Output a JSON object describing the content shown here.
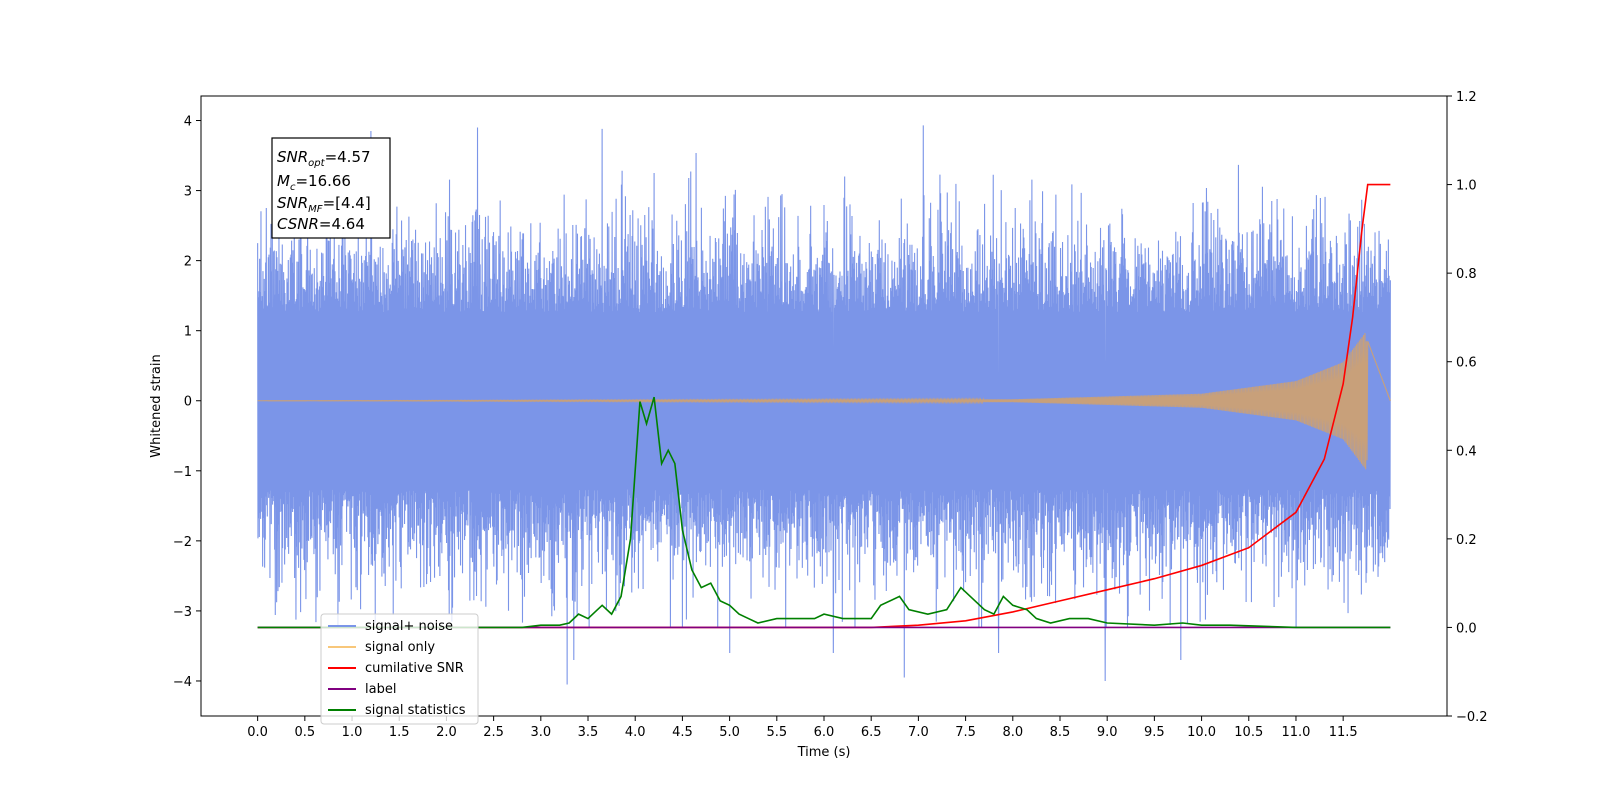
{
  "chart_data": {
    "type": "line",
    "xlabel": "Time (s)",
    "ylabel": "Whitened strain",
    "xlim": [
      -0.6,
      12.6
    ],
    "ylim": [
      -4.5,
      4.35
    ],
    "y2lim": [
      -0.2,
      1.2
    ],
    "x_ticks": [
      "0.0",
      "0.5",
      "1.0",
      "1.5",
      "2.0",
      "2.5",
      "3.0",
      "3.5",
      "4.0",
      "4.5",
      "5.0",
      "5.5",
      "6.0",
      "6.5",
      "7.0",
      "7.5",
      "8.0",
      "8.5",
      "9.0",
      "9.5",
      "10.0",
      "10.5",
      "11.0",
      "11.5"
    ],
    "y_ticks": [
      "4",
      "3",
      "2",
      "1",
      "0",
      "−1",
      "−2",
      "−3",
      "−4"
    ],
    "y2_ticks": [
      "1.2",
      "1.0",
      "0.8",
      "0.6",
      "0.4",
      "0.2",
      "0.0",
      "−0.2"
    ],
    "annotation": {
      "lines": [
        {
          "sym": "SNR",
          "sub": "opt",
          "value": "=4.57"
        },
        {
          "sym": "M",
          "sub": "c",
          "value": "=16.66"
        },
        {
          "sym": "SNR",
          "sub": "MF",
          "value": "=[4.4]"
        },
        {
          "sym": "CSNR",
          "sub": "",
          "value": "=4.64"
        }
      ]
    },
    "legend": {
      "position": "lower-left",
      "entries": [
        {
          "label": "signal+ noise",
          "color": "#7b95e8"
        },
        {
          "label": "signal only",
          "color": "#f8c77a"
        },
        {
          "label": "cumilative SNR",
          "color": "#ff0000"
        },
        {
          "label": "label",
          "color": "#800080"
        },
        {
          "label": "signal statistics",
          "color": "#008000"
        }
      ]
    },
    "series": [
      {
        "name": "signal+ noise",
        "axis": "left",
        "color": "#7b95e8",
        "x_start": 0.0,
        "x_end": 12.0,
        "typical_amplitude": 2.3,
        "max": 3.93,
        "min": -4.05,
        "peaks": [
          {
            "x": 1.2,
            "y": 3.85
          },
          {
            "x": 2.33,
            "y": 3.9
          },
          {
            "x": 3.65,
            "y": 3.88
          },
          {
            "x": 7.05,
            "y": 3.93
          },
          {
            "x": 3.28,
            "y": -4.05
          },
          {
            "x": 6.85,
            "y": -3.95
          },
          {
            "x": 8.98,
            "y": -4.0
          },
          {
            "x": 3.35,
            "y": -3.7
          },
          {
            "x": 9.78,
            "y": -3.7
          },
          {
            "x": 5.0,
            "y": -3.6
          },
          {
            "x": 7.85,
            "y": -3.6
          },
          {
            "x": 6.1,
            "y": -3.6
          }
        ]
      },
      {
        "name": "signal only",
        "axis": "left",
        "color": "#c8a07a",
        "x_start": 0.0,
        "x_end": 12.0,
        "points": [
          [
            0.0,
            0.0
          ],
          [
            8.0,
            0.02
          ],
          [
            10.0,
            0.1
          ],
          [
            11.0,
            0.28
          ],
          [
            11.5,
            0.55
          ],
          [
            11.75,
            1.0
          ],
          [
            11.76,
            -0.85
          ],
          [
            11.77,
            0.0
          ],
          [
            12.0,
            0.0
          ]
        ]
      },
      {
        "name": "cumilative SNR",
        "axis": "right",
        "color": "#ff0000",
        "points": [
          [
            0.0,
            0.0
          ],
          [
            6.5,
            0.0
          ],
          [
            7.0,
            0.005
          ],
          [
            7.5,
            0.015
          ],
          [
            8.0,
            0.035
          ],
          [
            8.5,
            0.06
          ],
          [
            9.0,
            0.085
          ],
          [
            9.5,
            0.11
          ],
          [
            10.0,
            0.14
          ],
          [
            10.5,
            0.18
          ],
          [
            11.0,
            0.26
          ],
          [
            11.3,
            0.38
          ],
          [
            11.5,
            0.55
          ],
          [
            11.6,
            0.7
          ],
          [
            11.7,
            0.9
          ],
          [
            11.76,
            1.0
          ],
          [
            12.0,
            1.0
          ]
        ]
      },
      {
        "name": "label",
        "axis": "right",
        "color": "#800080",
        "points": [
          [
            0.0,
            0.0
          ],
          [
            12.0,
            0.0
          ]
        ]
      },
      {
        "name": "signal statistics",
        "axis": "right",
        "color": "#008000",
        "points": [
          [
            0.0,
            0.0
          ],
          [
            2.8,
            0.0
          ],
          [
            3.0,
            0.005
          ],
          [
            3.2,
            0.005
          ],
          [
            3.3,
            0.01
          ],
          [
            3.4,
            0.03
          ],
          [
            3.5,
            0.02
          ],
          [
            3.6,
            0.04
          ],
          [
            3.65,
            0.05
          ],
          [
            3.75,
            0.03
          ],
          [
            3.85,
            0.07
          ],
          [
            3.95,
            0.2
          ],
          [
            4.05,
            0.51
          ],
          [
            4.12,
            0.46
          ],
          [
            4.2,
            0.52
          ],
          [
            4.28,
            0.37
          ],
          [
            4.35,
            0.4
          ],
          [
            4.42,
            0.37
          ],
          [
            4.5,
            0.22
          ],
          [
            4.6,
            0.13
          ],
          [
            4.7,
            0.09
          ],
          [
            4.8,
            0.1
          ],
          [
            4.9,
            0.06
          ],
          [
            5.0,
            0.05
          ],
          [
            5.1,
            0.03
          ],
          [
            5.2,
            0.02
          ],
          [
            5.3,
            0.01
          ],
          [
            5.5,
            0.02
          ],
          [
            5.7,
            0.02
          ],
          [
            5.9,
            0.02
          ],
          [
            6.0,
            0.03
          ],
          [
            6.2,
            0.02
          ],
          [
            6.5,
            0.02
          ],
          [
            6.6,
            0.05
          ],
          [
            6.8,
            0.07
          ],
          [
            6.9,
            0.04
          ],
          [
            7.1,
            0.03
          ],
          [
            7.3,
            0.04
          ],
          [
            7.45,
            0.09
          ],
          [
            7.55,
            0.07
          ],
          [
            7.7,
            0.04
          ],
          [
            7.8,
            0.03
          ],
          [
            7.9,
            0.07
          ],
          [
            8.0,
            0.05
          ],
          [
            8.15,
            0.04
          ],
          [
            8.25,
            0.02
          ],
          [
            8.4,
            0.01
          ],
          [
            8.6,
            0.02
          ],
          [
            8.8,
            0.02
          ],
          [
            9.0,
            0.01
          ],
          [
            9.5,
            0.005
          ],
          [
            9.8,
            0.01
          ],
          [
            10.0,
            0.005
          ],
          [
            10.3,
            0.005
          ],
          [
            11.0,
            0.0
          ],
          [
            12.0,
            0.0
          ]
        ]
      }
    ]
  }
}
